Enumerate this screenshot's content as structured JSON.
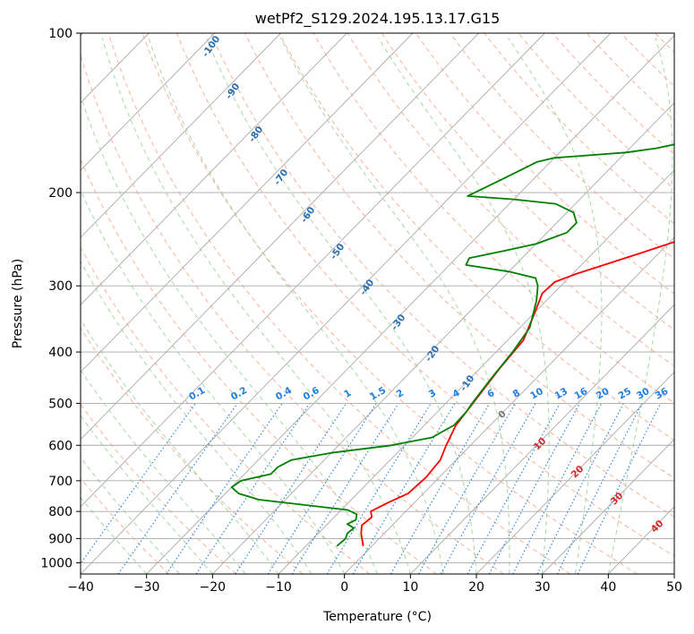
{
  "chart_data": {
    "type": "line",
    "title": "wetPf2_S129.2024.195.13.17.G15",
    "xlabel": "Temperature (°C)",
    "ylabel": "Pressure (hPa)",
    "xlim": [
      -40,
      50
    ],
    "ylim": [
      1050,
      100
    ],
    "y_scale": "log",
    "grid": true,
    "x_ticks": [
      -40,
      -30,
      -20,
      -10,
      0,
      10,
      20,
      30,
      40,
      50
    ],
    "x_tick_labels": [
      "−40",
      "−30",
      "−20",
      "−10",
      "0",
      "10",
      "20",
      "30",
      "40",
      "50"
    ],
    "y_ticks": [
      1000,
      900,
      800,
      700,
      600,
      500,
      400,
      300,
      200,
      100
    ],
    "y_tick_labels": [
      "1000",
      "900",
      "800",
      "700",
      "600",
      "500",
      "400",
      "300",
      "200",
      "100"
    ],
    "series": [
      {
        "color": "#ff0000",
        "points": [
          [
            -1.3,
            930
          ],
          [
            -3.5,
            880
          ],
          [
            -4.6,
            850
          ],
          [
            -4.3,
            820
          ],
          [
            -5.3,
            800
          ],
          [
            -4.0,
            770
          ],
          [
            -2.3,
            740
          ],
          [
            -2.0,
            690
          ],
          [
            -2.4,
            640
          ],
          [
            -3.7,
            600
          ],
          [
            -5.2,
            550
          ],
          [
            -5.9,
            500
          ],
          [
            -7.0,
            430
          ],
          [
            -7.6,
            380
          ],
          [
            -9.8,
            340
          ],
          [
            -11.7,
            310
          ],
          [
            -11.5,
            295
          ],
          [
            -9.5,
            285
          ],
          [
            -2.7,
            260
          ],
          [
            1.5,
            245
          ],
          [
            8.0,
            225
          ],
          [
            13.5,
            205
          ],
          [
            18.0,
            185
          ],
          [
            21.0,
            170
          ],
          [
            23.5,
            155
          ],
          [
            25.5,
            143
          ],
          [
            28.5,
            132
          ],
          [
            32.0,
            122
          ],
          [
            35.5,
            112
          ],
          [
            37.6,
            106
          ],
          [
            39.6,
            100
          ]
        ]
      },
      {
        "color": "#008000",
        "points": [
          [
            -5.3,
            930
          ],
          [
            -5.1,
            900
          ],
          [
            -5.6,
            880
          ],
          [
            -5.4,
            860
          ],
          [
            -7.0,
            845
          ],
          [
            -6.3,
            830
          ],
          [
            -7.0,
            810
          ],
          [
            -9.0,
            795
          ],
          [
            -24.0,
            760
          ],
          [
            -28.0,
            740
          ],
          [
            -30.0,
            720
          ],
          [
            -29.5,
            700
          ],
          [
            -26.0,
            680
          ],
          [
            -26.0,
            660
          ],
          [
            -25.0,
            640
          ],
          [
            -20.0,
            620
          ],
          [
            -12.0,
            600
          ],
          [
            -7.0,
            580
          ],
          [
            -5.5,
            550
          ],
          [
            -5.6,
            520
          ],
          [
            -6.0,
            500
          ],
          [
            -6.8,
            450
          ],
          [
            -7.5,
            400
          ],
          [
            -8.5,
            360
          ],
          [
            -11.5,
            320
          ],
          [
            -13.5,
            300
          ],
          [
            -15.0,
            290
          ],
          [
            -20.0,
            282
          ],
          [
            -27.5,
            274
          ],
          [
            -28.0,
            266
          ],
          [
            -24.0,
            258
          ],
          [
            -20.0,
            250
          ],
          [
            -17.0,
            238
          ],
          [
            -17.0,
            228
          ],
          [
            -19.0,
            218
          ],
          [
            -23.0,
            210
          ],
          [
            -30.0,
            206
          ],
          [
            -37.5,
            203
          ],
          [
            -35.0,
            190
          ],
          [
            -32.0,
            175
          ],
          [
            -30.0,
            172
          ],
          [
            -20.0,
            168
          ],
          [
            -16.0,
            165
          ],
          [
            -12.0,
            160
          ],
          [
            -7.5,
            154
          ],
          [
            -6.5,
            148
          ],
          [
            -6.5,
            140
          ],
          [
            -7.8,
            132
          ],
          [
            -8.5,
            126
          ],
          [
            -6.5,
            120
          ],
          [
            -4.5,
            117
          ],
          [
            -4.2,
            110
          ],
          [
            -4.3,
            104
          ],
          [
            -4.4,
            100
          ]
        ]
      }
    ],
    "dry_adiabat_labels": [
      "-100",
      "-90",
      "-80",
      "-70",
      "-60",
      "-50",
      "-40",
      "-30",
      "-20",
      "-10"
    ],
    "mixing_ratio_labels": [
      "0.1",
      "0.2",
      "0.4",
      "0.6",
      "1",
      "1.5",
      "2",
      "3",
      "4",
      "6",
      "8",
      "10",
      "13",
      "16",
      "20",
      "25",
      "30",
      "36"
    ],
    "moist_adiabat_labels": [
      "0",
      "10",
      "20",
      "30",
      "40"
    ],
    "colors": {
      "temperature": "#ff0000",
      "dewpoint": "#008000",
      "isotherm": "#aaaaaa",
      "dry_adiabat": "#f5a58a",
      "moist_adiabat": "#9ed39e",
      "mixing_ratio": "#1f7fe0",
      "dry_label": "#2c6fb0",
      "moist_label": "#d62728",
      "zero_label": "#777777"
    }
  }
}
